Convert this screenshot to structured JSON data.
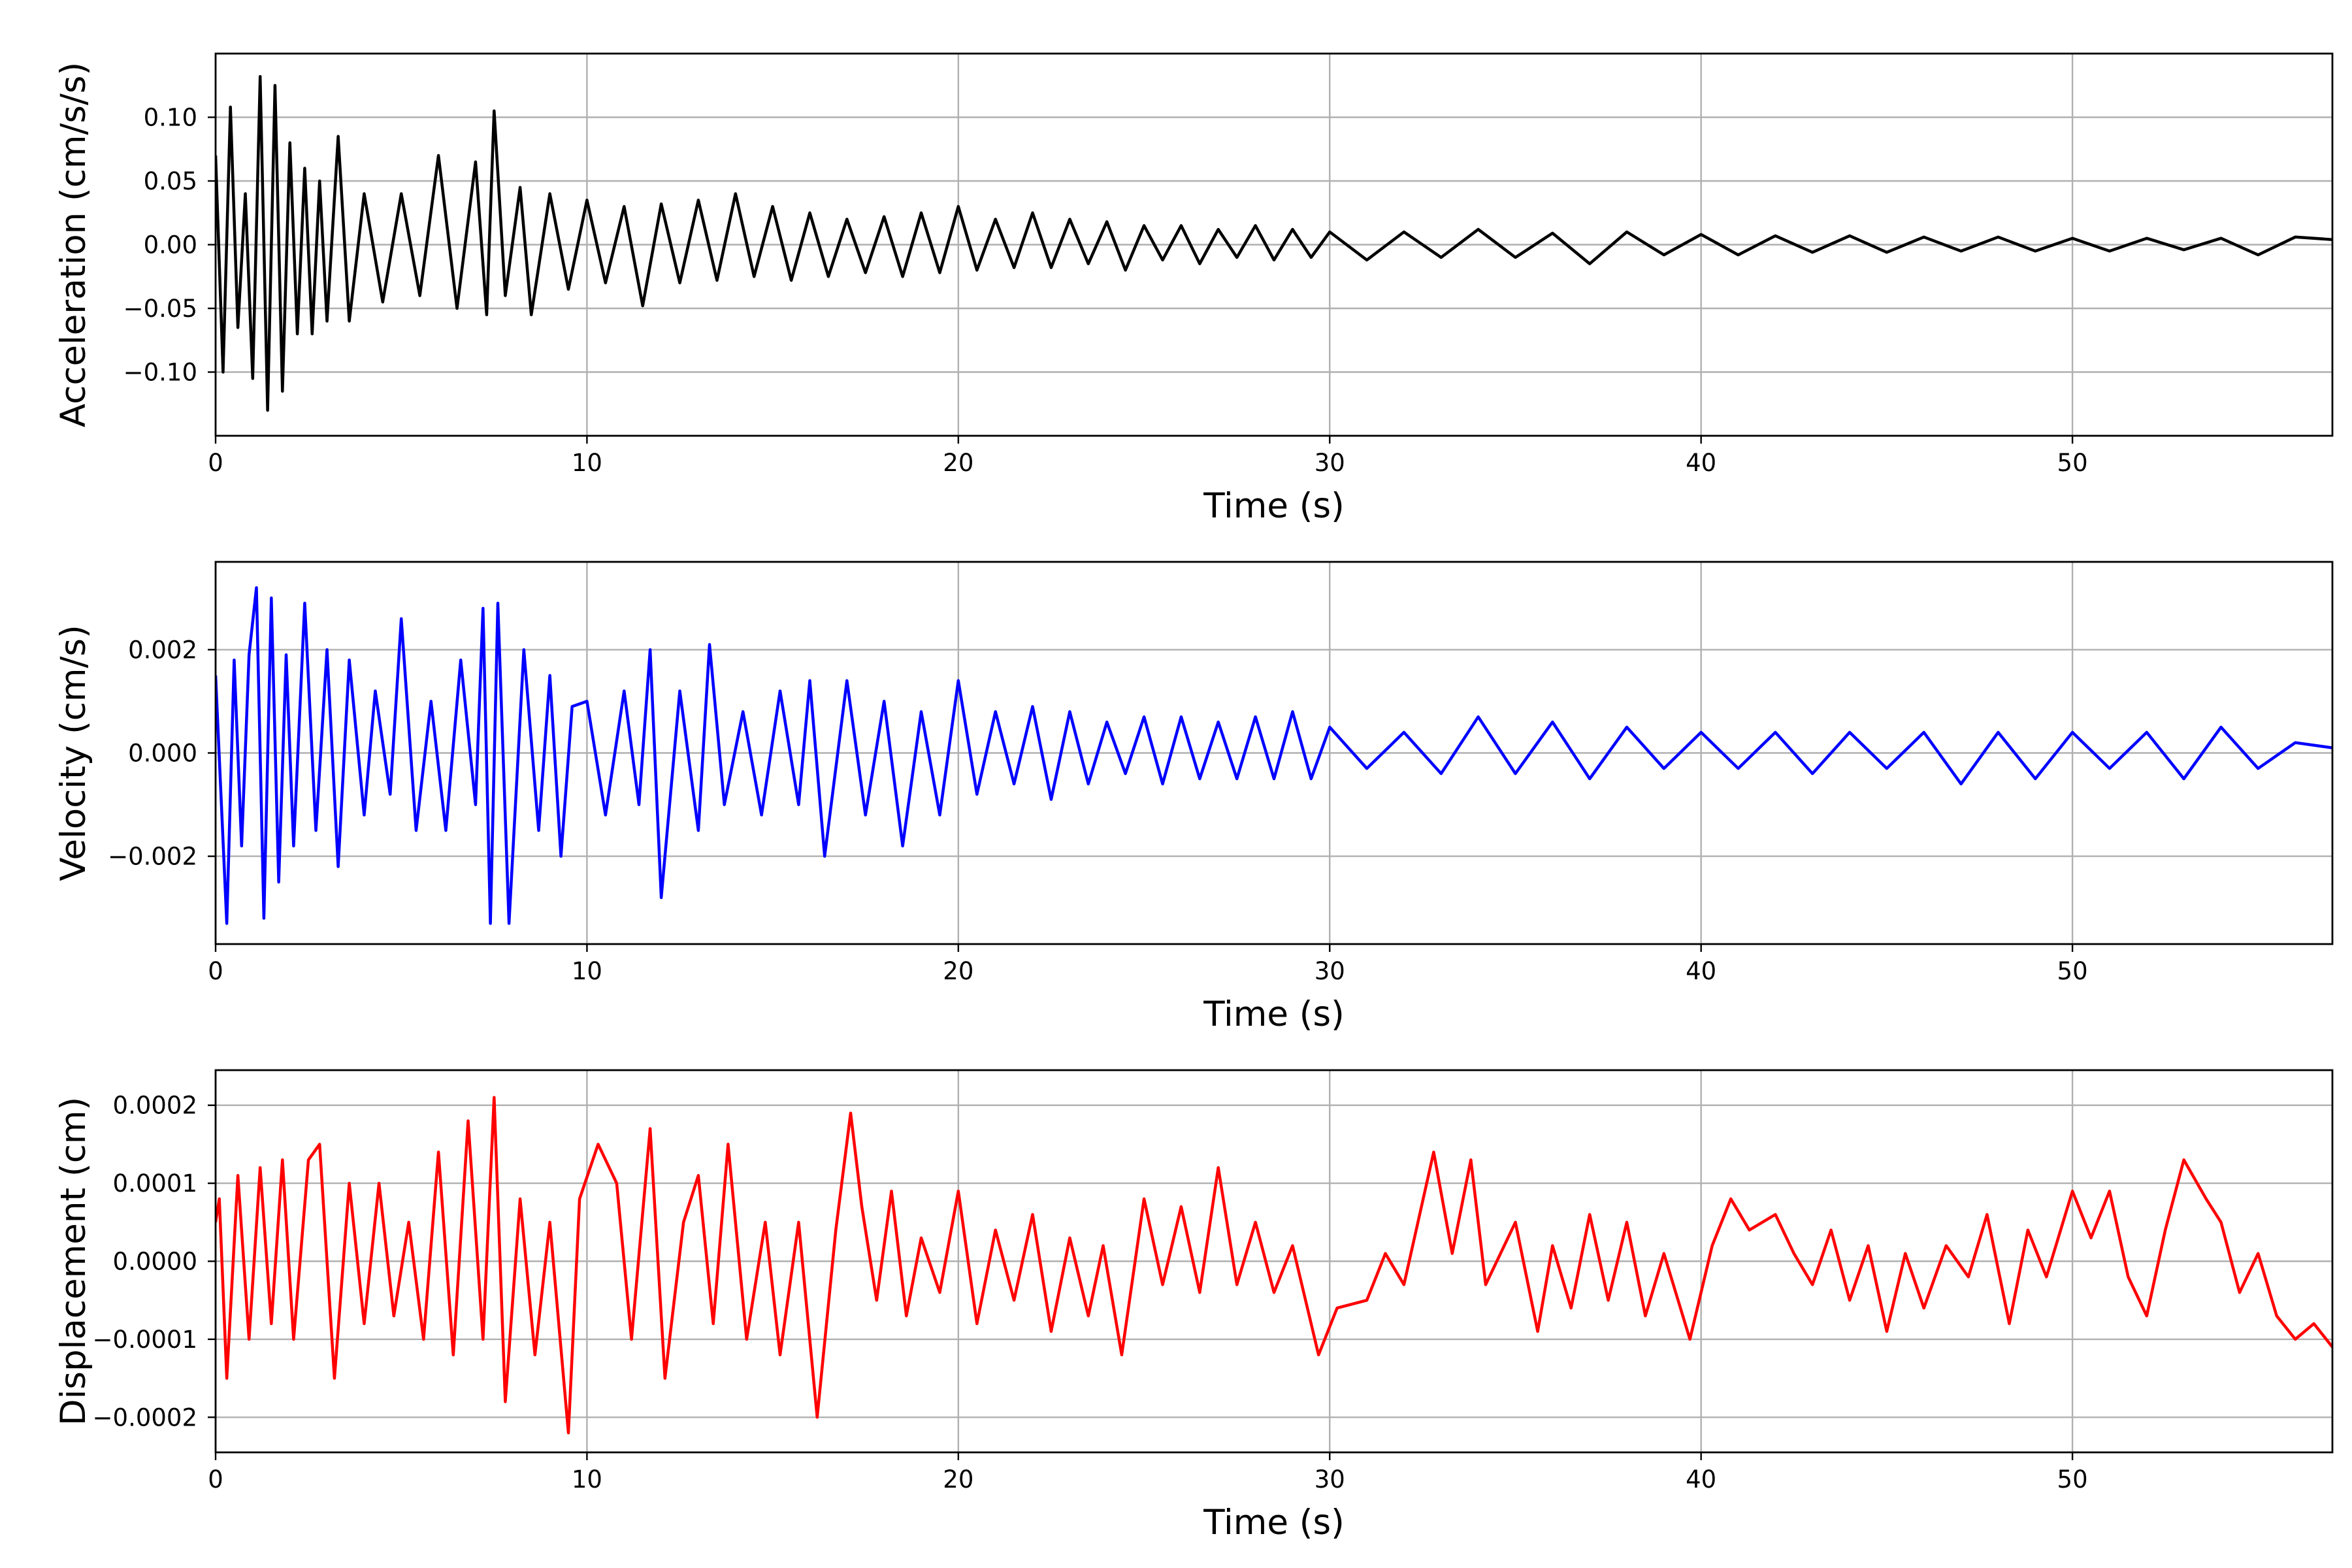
{
  "figure": {
    "background": "#ffffff",
    "grid_color": "#b0b0b0"
  },
  "chart_data": [
    {
      "type": "line",
      "xlabel": "Time (s)",
      "ylabel": "Acceleration (cm/s/s)",
      "xlim": [
        0,
        57
      ],
      "ylim": [
        -0.15,
        0.15
      ],
      "xticks": [
        0,
        10,
        20,
        30,
        40,
        50
      ],
      "xtick_labels": [
        "0",
        "10",
        "20",
        "30",
        "40",
        "50"
      ],
      "yticks": [
        -0.1,
        -0.05,
        0.0,
        0.05,
        0.1
      ],
      "ytick_labels": [
        "−0.10",
        "−0.05",
        "0.00",
        "0.05",
        "0.10"
      ],
      "grid": true,
      "series": [
        {
          "color": "#000000",
          "x": [
            0,
            0.2,
            0.4,
            0.6,
            0.8,
            1.0,
            1.2,
            1.4,
            1.6,
            1.8,
            2.0,
            2.2,
            2.4,
            2.6,
            2.8,
            3.0,
            3.3,
            3.6,
            4.0,
            4.5,
            5.0,
            5.5,
            6.0,
            6.5,
            7.0,
            7.3,
            7.5,
            7.8,
            8.2,
            8.5,
            9.0,
            9.5,
            10.0,
            10.5,
            11.0,
            11.5,
            12.0,
            12.5,
            13.0,
            13.5,
            14.0,
            14.5,
            15.0,
            15.5,
            16.0,
            16.5,
            17.0,
            17.5,
            18.0,
            18.5,
            19.0,
            19.5,
            20.0,
            20.5,
            21.0,
            21.5,
            22.0,
            22.5,
            23.0,
            23.5,
            24.0,
            24.5,
            25.0,
            25.5,
            26.0,
            26.5,
            27.0,
            27.5,
            28.0,
            28.5,
            29.0,
            29.5,
            30.0,
            31.0,
            32.0,
            33.0,
            34.0,
            35.0,
            36.0,
            37.0,
            38.0,
            39.0,
            40.0,
            41.0,
            42.0,
            43.0,
            44.0,
            45.0,
            46.0,
            47.0,
            48.0,
            49.0,
            50.0,
            51.0,
            52.0,
            53.0,
            54.0,
            55.0,
            56.0,
            57.0
          ],
          "y": [
            0.07,
            -0.1,
            0.108,
            -0.065,
            0.04,
            -0.105,
            0.132,
            -0.13,
            0.125,
            -0.115,
            0.08,
            -0.07,
            0.06,
            -0.07,
            0.05,
            -0.06,
            0.085,
            -0.06,
            0.04,
            -0.045,
            0.04,
            -0.04,
            0.07,
            -0.05,
            0.065,
            -0.055,
            0.105,
            -0.04,
            0.045,
            -0.055,
            0.04,
            -0.035,
            0.035,
            -0.03,
            0.03,
            -0.048,
            0.032,
            -0.03,
            0.035,
            -0.028,
            0.04,
            -0.025,
            0.03,
            -0.028,
            0.025,
            -0.025,
            0.02,
            -0.022,
            0.022,
            -0.025,
            0.025,
            -0.022,
            0.03,
            -0.02,
            0.02,
            -0.018,
            0.025,
            -0.018,
            0.02,
            -0.015,
            0.018,
            -0.02,
            0.015,
            -0.012,
            0.015,
            -0.015,
            0.012,
            -0.01,
            0.015,
            -0.012,
            0.012,
            -0.01,
            0.01,
            -0.012,
            0.01,
            -0.01,
            0.012,
            -0.01,
            0.009,
            -0.015,
            0.01,
            -0.008,
            0.008,
            -0.008,
            0.007,
            -0.006,
            0.007,
            -0.006,
            0.006,
            -0.005,
            0.006,
            -0.005,
            0.005,
            -0.005,
            0.005,
            -0.004,
            0.005,
            -0.008,
            0.006,
            0.004
          ]
        }
      ]
    },
    {
      "type": "line",
      "xlabel": "Time (s)",
      "ylabel": "Velocity (cm/s)",
      "xlim": [
        0,
        57
      ],
      "ylim": [
        -0.0037,
        0.0037
      ],
      "xticks": [
        0,
        10,
        20,
        30,
        40,
        50
      ],
      "xtick_labels": [
        "0",
        "10",
        "20",
        "30",
        "40",
        "50"
      ],
      "yticks": [
        -0.002,
        0.0,
        0.002
      ],
      "ytick_labels": [
        "−0.002",
        "0.000",
        "0.002"
      ],
      "grid": true,
      "series": [
        {
          "color": "#0000ff",
          "x": [
            0,
            0.3,
            0.5,
            0.7,
            0.9,
            1.1,
            1.3,
            1.5,
            1.7,
            1.9,
            2.1,
            2.4,
            2.7,
            3.0,
            3.3,
            3.6,
            4.0,
            4.3,
            4.7,
            5.0,
            5.4,
            5.8,
            6.2,
            6.6,
            7.0,
            7.2,
            7.4,
            7.6,
            7.9,
            8.3,
            8.7,
            9.0,
            9.3,
            9.6,
            10.0,
            10.5,
            11.0,
            11.4,
            11.7,
            12.0,
            12.5,
            13.0,
            13.3,
            13.7,
            14.2,
            14.7,
            15.2,
            15.7,
            16.0,
            16.4,
            17.0,
            17.5,
            18.0,
            18.5,
            19.0,
            19.5,
            20.0,
            20.5,
            21.0,
            21.5,
            22.0,
            22.5,
            23.0,
            23.5,
            24.0,
            24.5,
            25.0,
            25.5,
            26.0,
            26.5,
            27.0,
            27.5,
            28.0,
            28.5,
            29.0,
            29.5,
            30.0,
            31.0,
            32.0,
            33.0,
            34.0,
            35.0,
            36.0,
            37.0,
            38.0,
            39.0,
            40.0,
            41.0,
            42.0,
            43.0,
            44.0,
            45.0,
            46.0,
            47.0,
            48.0,
            49.0,
            50.0,
            51.0,
            52.0,
            53.0,
            54.0,
            55.0,
            56.0,
            57.0
          ],
          "y": [
            0.0015,
            -0.0033,
            0.0018,
            -0.0018,
            0.0019,
            0.0032,
            -0.0032,
            0.003,
            -0.0025,
            0.0019,
            -0.0018,
            0.0029,
            -0.0015,
            0.002,
            -0.0022,
            0.0018,
            -0.0012,
            0.0012,
            -0.0008,
            0.0026,
            -0.0015,
            0.001,
            -0.0015,
            0.0018,
            -0.001,
            0.0028,
            -0.0033,
            0.0029,
            -0.0033,
            0.002,
            -0.0015,
            0.0015,
            -0.002,
            0.0009,
            0.001,
            -0.0012,
            0.0012,
            -0.001,
            0.002,
            -0.0028,
            0.0012,
            -0.0015,
            0.0021,
            -0.001,
            0.0008,
            -0.0012,
            0.0012,
            -0.001,
            0.0014,
            -0.002,
            0.0014,
            -0.0012,
            0.001,
            -0.0018,
            0.0008,
            -0.0012,
            0.0014,
            -0.0008,
            0.0008,
            -0.0006,
            0.0009,
            -0.0009,
            0.0008,
            -0.0006,
            0.0006,
            -0.0004,
            0.0007,
            -0.0006,
            0.0007,
            -0.0005,
            0.0006,
            -0.0005,
            0.0007,
            -0.0005,
            0.0008,
            -0.0005,
            0.0005,
            -0.0003,
            0.0004,
            -0.0004,
            0.0007,
            -0.0004,
            0.0006,
            -0.0005,
            0.0005,
            -0.0003,
            0.0004,
            -0.0003,
            0.0004,
            -0.0004,
            0.0004,
            -0.0003,
            0.0004,
            -0.0006,
            0.0004,
            -0.0005,
            0.0004,
            -0.0003,
            0.0004,
            -0.0005,
            0.0005,
            -0.0003,
            0.0002,
            0.0001
          ]
        }
      ]
    },
    {
      "type": "line",
      "xlabel": "Time (s)",
      "ylabel": "Displacement (cm)",
      "xlim": [
        0,
        57
      ],
      "ylim": [
        -0.000245,
        0.000245
      ],
      "xticks": [
        0,
        10,
        20,
        30,
        40,
        50
      ],
      "xtick_labels": [
        "0",
        "10",
        "20",
        "30",
        "40",
        "50"
      ],
      "yticks": [
        -0.0002,
        -0.0001,
        0.0,
        0.0001,
        0.0002
      ],
      "ytick_labels": [
        "−0.0002",
        "−0.0001",
        "0.0000",
        "0.0001",
        "0.0002"
      ],
      "grid": true,
      "series": [
        {
          "color": "#ff0000",
          "x": [
            0,
            0.1,
            0.3,
            0.6,
            0.9,
            1.2,
            1.5,
            1.8,
            2.1,
            2.5,
            2.8,
            3.2,
            3.6,
            4.0,
            4.4,
            4.8,
            5.2,
            5.6,
            6.0,
            6.4,
            6.8,
            7.2,
            7.5,
            7.8,
            8.2,
            8.6,
            9.0,
            9.5,
            9.8,
            10.3,
            10.8,
            11.2,
            11.7,
            12.1,
            12.6,
            13.0,
            13.4,
            13.8,
            14.3,
            14.8,
            15.2,
            15.7,
            16.2,
            16.7,
            17.1,
            17.4,
            17.8,
            18.2,
            18.6,
            19.0,
            19.5,
            20.0,
            20.5,
            21.0,
            21.5,
            22.0,
            22.5,
            23.0,
            23.5,
            23.9,
            24.4,
            25.0,
            25.5,
            26.0,
            26.5,
            27.0,
            27.5,
            28.0,
            28.5,
            29.0,
            29.7,
            30.2,
            31.0,
            31.5,
            32.0,
            32.8,
            33.3,
            33.8,
            34.2,
            35.0,
            35.6,
            36.0,
            36.5,
            37.0,
            37.5,
            38.0,
            38.5,
            39.0,
            39.7,
            40.3,
            40.8,
            41.3,
            42.0,
            42.5,
            43.0,
            43.5,
            44.0,
            44.5,
            45.0,
            45.5,
            46.0,
            46.6,
            47.2,
            47.7,
            48.3,
            48.8,
            49.3,
            50.0,
            50.5,
            51.0,
            51.5,
            52.0,
            52.5,
            53.0,
            53.6,
            54.0,
            54.5,
            55.0,
            55.5,
            56.0,
            56.5,
            57.0
          ],
          "y": [
            5e-05,
            8e-05,
            -0.00015,
            0.00011,
            -0.0001,
            0.00012,
            -8e-05,
            0.00013,
            -0.0001,
            0.00013,
            0.00015,
            -0.00015,
            0.0001,
            -8e-05,
            0.0001,
            -7e-05,
            5e-05,
            -0.0001,
            0.00014,
            -0.00012,
            0.00018,
            -0.0001,
            0.00021,
            -0.00018,
            8e-05,
            -0.00012,
            5e-05,
            -0.00022,
            8e-05,
            0.00015,
            0.0001,
            -0.0001,
            0.00017,
            -0.00015,
            5e-05,
            0.00011,
            -8e-05,
            0.00015,
            -0.0001,
            5e-05,
            -0.00012,
            5e-05,
            -0.0002,
            4e-05,
            0.00019,
            7e-05,
            -5e-05,
            9e-05,
            -7e-05,
            3e-05,
            -4e-05,
            9e-05,
            -8e-05,
            4e-05,
            -5e-05,
            6e-05,
            -9e-05,
            3e-05,
            -7e-05,
            2e-05,
            -0.00012,
            8e-05,
            -3e-05,
            7e-05,
            -4e-05,
            0.00012,
            -3e-05,
            5e-05,
            -4e-05,
            2e-05,
            -0.00012,
            -6e-05,
            -5e-05,
            1e-05,
            -3e-05,
            0.00014,
            1e-05,
            0.00013,
            -3e-05,
            5e-05,
            -9e-05,
            2e-05,
            -6e-05,
            6e-05,
            -5e-05,
            5e-05,
            -7e-05,
            1e-05,
            -0.0001,
            2e-05,
            8e-05,
            4e-05,
            6e-05,
            1e-05,
            -3e-05,
            4e-05,
            -5e-05,
            2e-05,
            -9e-05,
            1e-05,
            -6e-05,
            2e-05,
            -2e-05,
            6e-05,
            -8e-05,
            4e-05,
            -2e-05,
            9e-05,
            3e-05,
            9e-05,
            -2e-05,
            -7e-05,
            4e-05,
            0.00013,
            8e-05,
            5e-05,
            -4e-05,
            1e-05,
            -7e-05,
            -0.0001,
            -8e-05,
            -0.00011
          ]
        }
      ]
    }
  ]
}
